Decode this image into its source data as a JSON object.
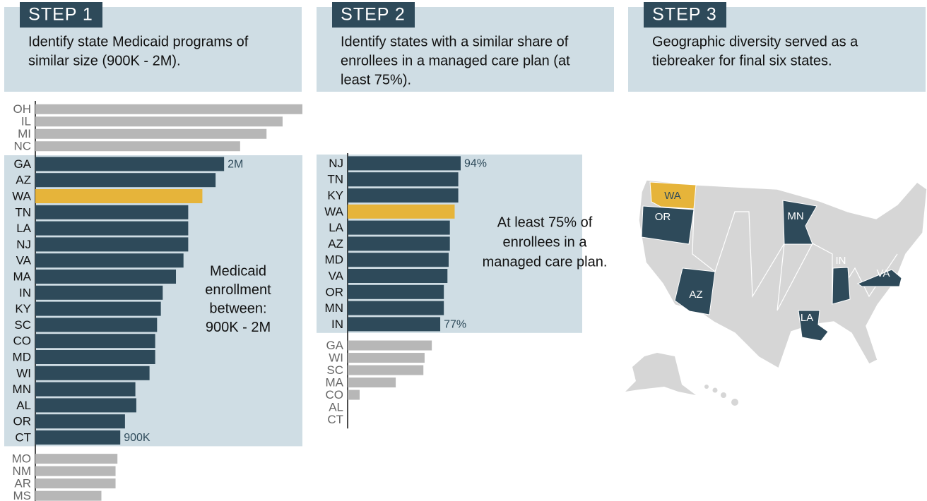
{
  "steps": [
    {
      "label": "STEP 1",
      "lines": [
        "Identify state Medicaid programs of",
        "similar size (900K - 2M)."
      ]
    },
    {
      "label": "STEP 2",
      "lines": [
        "Identify states with a similar share of",
        "enrollees in a managed care plan (at",
        "least 75%)."
      ]
    },
    {
      "label": "STEP 3",
      "lines": [
        "Geographic diversity served as a",
        "tiebreaker for final six states."
      ]
    }
  ],
  "chart_data": [
    {
      "type": "bar",
      "orientation": "horizontal",
      "categories": [
        "OH",
        "IL",
        "MI",
        "NC",
        "GA",
        "AZ",
        "WA",
        "TN",
        "LA",
        "NJ",
        "VA",
        "MA",
        "IN",
        "KY",
        "SC",
        "CO",
        "MD",
        "WI",
        "MN",
        "AL",
        "OR",
        "CT",
        "MO",
        "NM",
        "AR",
        "MS"
      ],
      "values": [
        2830000,
        2620000,
        2450000,
        2170000,
        2000000,
        1910000,
        1770000,
        1620000,
        1620000,
        1620000,
        1570000,
        1490000,
        1350000,
        1330000,
        1290000,
        1270000,
        1270000,
        1210000,
        1060000,
        1070000,
        950000,
        900000,
        870000,
        850000,
        850000,
        700000
      ],
      "value_labels": [
        null,
        null,
        null,
        null,
        "2M",
        null,
        null,
        null,
        null,
        null,
        null,
        null,
        null,
        null,
        null,
        null,
        null,
        null,
        null,
        null,
        null,
        "900K",
        null,
        null,
        null,
        null
      ],
      "colors": [
        "#b7b7b7",
        "#b7b7b7",
        "#b7b7b7",
        "#b7b7b7",
        "#2e4a5a",
        "#2e4a5a",
        "#e6b43a",
        "#2e4a5a",
        "#2e4a5a",
        "#2e4a5a",
        "#2e4a5a",
        "#2e4a5a",
        "#2e4a5a",
        "#2e4a5a",
        "#2e4a5a",
        "#2e4a5a",
        "#2e4a5a",
        "#2e4a5a",
        "#2e4a5a",
        "#2e4a5a",
        "#2e4a5a",
        "#2e4a5a",
        "#b7b7b7",
        "#b7b7b7",
        "#b7b7b7",
        "#b7b7b7"
      ],
      "muted_color": "#b7b7b7",
      "xlim": [
        0,
        2830000
      ],
      "annotation": [
        "Medicaid",
        "enrollment",
        "between:",
        "900K - 2M"
      ]
    },
    {
      "type": "bar",
      "orientation": "horizontal",
      "categories": [
        "NJ",
        "TN",
        "KY",
        "WA",
        "LA",
        "AZ",
        "MD",
        "VA",
        "OR",
        "MN",
        "IN",
        "GA",
        "WI",
        "SC",
        "MA",
        "CO",
        "AL",
        "CT"
      ],
      "values": [
        94,
        92,
        92,
        89,
        85,
        85,
        84,
        83,
        80,
        80,
        77,
        70,
        64,
        63,
        40,
        10,
        0,
        0
      ],
      "value_labels": [
        "94%",
        null,
        null,
        null,
        null,
        null,
        null,
        null,
        null,
        null,
        "77%",
        null,
        null,
        null,
        null,
        null,
        null,
        null
      ],
      "colors": [
        "#2e4a5a",
        "#2e4a5a",
        "#2e4a5a",
        "#e6b43a",
        "#2e4a5a",
        "#2e4a5a",
        "#2e4a5a",
        "#2e4a5a",
        "#2e4a5a",
        "#2e4a5a",
        "#2e4a5a",
        "#b7b7b7",
        "#b7b7b7",
        "#b7b7b7",
        "#b7b7b7",
        "#b7b7b7",
        "#b7b7b7",
        "#b7b7b7"
      ],
      "muted_color": "#b7b7b7",
      "xlim": [
        0,
        94
      ],
      "annotation": [
        "At least 75% of",
        "enrollees in a",
        "managed care plan."
      ]
    }
  ],
  "map": {
    "labels": [
      "WA",
      "OR",
      "MN",
      "IN",
      "VA",
      "AZ",
      "LA"
    ]
  }
}
